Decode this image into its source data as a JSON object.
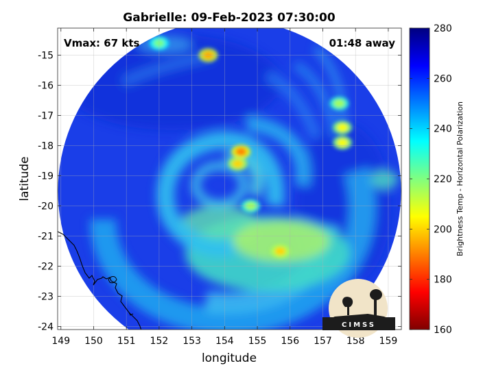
{
  "title": "Gabrielle: 09-Feb-2023 07:30:00",
  "annotations": {
    "vmax": "Vmax: 67 kts",
    "time_away": "01:48 away"
  },
  "logo": {
    "text": "CIMSS"
  },
  "map_data": {
    "xlabel": "longitude",
    "ylabel": "latitude",
    "xlim": [
      148.9,
      159.4
    ],
    "ylim": [
      -24.1,
      -14.1
    ],
    "xticks": [
      149,
      150,
      151,
      152,
      153,
      154,
      155,
      156,
      157,
      158,
      159
    ],
    "yticks": [
      -15,
      -16,
      -17,
      -18,
      -19,
      -20,
      -21,
      -22,
      -23,
      -24
    ],
    "grid": true,
    "swath_center": [
      154.15,
      -19.5
    ],
    "storm_center": [
      154.3,
      -19.3
    ],
    "warm_spots": [
      {
        "lon": 154.5,
        "lat": -18.2,
        "temp": 190
      },
      {
        "lon": 154.4,
        "lat": -18.6,
        "temp": 200
      },
      {
        "lon": 155.7,
        "lat": -21.5,
        "temp": 200
      },
      {
        "lon": 153.5,
        "lat": -15.0,
        "temp": 195
      },
      {
        "lon": 157.6,
        "lat": -17.4,
        "temp": 205
      },
      {
        "lon": 157.6,
        "lat": -17.9,
        "temp": 205
      },
      {
        "lon": 157.5,
        "lat": -16.6,
        "temp": 215
      },
      {
        "lon": 154.8,
        "lat": -20.0,
        "temp": 215
      },
      {
        "lon": 152.0,
        "lat": -14.6,
        "temp": 220
      }
    ]
  },
  "colorbar": {
    "label": "Brightness Temp - Horizontal Polarization",
    "min": 160,
    "max": 280,
    "ticks": [
      280,
      260,
      240,
      220,
      200,
      180,
      160
    ],
    "colormap": "jet"
  }
}
